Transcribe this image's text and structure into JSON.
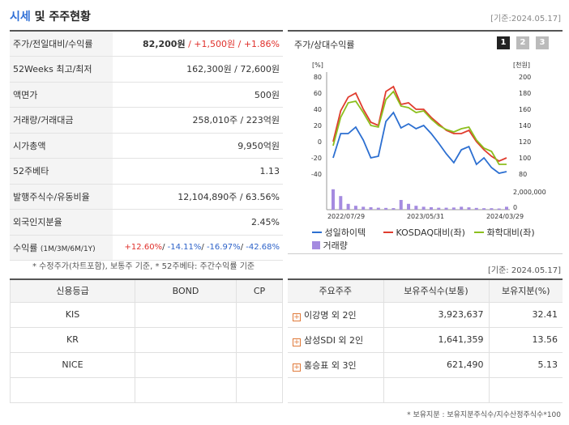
{
  "header": {
    "title_highlight": "시세",
    "title_rest": " 및 주주현황",
    "basedate": "[기준:2024.05.17]"
  },
  "price_table": {
    "rows": [
      {
        "label": "주가/전일대비/수익률",
        "price": "82,200원",
        "sep1": " / ",
        "change": "+1,500원",
        "sep2": " / ",
        "pct": "+1.86%"
      },
      {
        "label": "52Weeks 최고/최저",
        "value": "162,300원 / 72,600원"
      },
      {
        "label": "액면가",
        "value": "500원"
      },
      {
        "label": "거래량/거래대금",
        "value": "258,010주 / 223억원"
      },
      {
        "label": "시가총액",
        "value": "9,950억원"
      },
      {
        "label": "52주베타",
        "value": "1.13"
      },
      {
        "label": "발행주식수/유동비율",
        "value": "12,104,890주 / 63.56%"
      },
      {
        "label": "외국인지분율",
        "value": "2.45%"
      },
      {
        "label": "수익률",
        "label_sub": "(1M/3M/6M/1Y)",
        "r1": "+12.60%",
        "r2": "-14.11%",
        "r3": "-16.97%",
        "r4": "-42.68%"
      }
    ],
    "note": "* 수정주가(차트포함), 보통주 기준, * 52주베타: 주간수익률 기준"
  },
  "chart_panel": {
    "title": "주가/상대수익률",
    "period_buttons": [
      "1",
      "2",
      "3"
    ],
    "basedate": "[기준: 2024.05.17]",
    "left_unit": "[%]",
    "right_unit": "[천원]",
    "volume_label": "2,000,000",
    "volume_zero": "0",
    "legend": [
      "성일하이텍",
      "KOSDAQ대비(좌)",
      "화학대비(좌)",
      "거래량"
    ],
    "colors": {
      "stock": "#2c6fd1",
      "kosdaq": "#e03c2e",
      "chem": "#8cbf1e",
      "volume": "#a58be0"
    }
  },
  "chart_data": {
    "type": "line",
    "x_labels": [
      "2022/07/29",
      "2023/05/31",
      "2024/03/29"
    ],
    "left_axis": {
      "ticks": [
        "80",
        "60",
        "40",
        "20",
        "0",
        "-20",
        "-40"
      ],
      "ylim": [
        -40,
        80
      ]
    },
    "right_axis": {
      "ticks": [
        "200",
        "180",
        "160",
        "140",
        "120",
        "100",
        "80"
      ],
      "ylim": [
        80,
        200
      ]
    },
    "series": [
      {
        "name": "성일하이텍",
        "axis": "right",
        "values": [
          100,
          130,
          130,
          138,
          122,
          100,
          102,
          145,
          156,
          137,
          142,
          136,
          140,
          130,
          118,
          105,
          94,
          110,
          114,
          92,
          100,
          88,
          81,
          83
        ]
      },
      {
        "name": "KOSDAQ대비(좌)",
        "axis": "left",
        "values": [
          0,
          38,
          55,
          60,
          40,
          24,
          20,
          62,
          68,
          46,
          48,
          40,
          40,
          30,
          22,
          14,
          10,
          10,
          14,
          0,
          -10,
          -18,
          -24,
          -20
        ]
      },
      {
        "name": "화학대비(좌)",
        "axis": "left",
        "values": [
          -5,
          30,
          48,
          50,
          36,
          20,
          18,
          52,
          62,
          44,
          42,
          36,
          38,
          28,
          20,
          15,
          12,
          16,
          18,
          2,
          -8,
          -12,
          -28,
          -28
        ]
      }
    ],
    "volume": [
      2100000,
      1400000,
      600000,
      400000,
      300000,
      250000,
      200000,
      180000,
      160000,
      1000000,
      600000,
      400000,
      300000,
      250000,
      200000,
      200000,
      220000,
      300000,
      240000,
      180000,
      150000,
      150000,
      120000,
      300000
    ]
  },
  "credit_table": {
    "headers": [
      "신용등급",
      "BOND",
      "CP"
    ],
    "rows": [
      [
        "KIS",
        "",
        ""
      ],
      [
        "KR",
        "",
        ""
      ],
      [
        "NICE",
        "",
        ""
      ],
      [
        "",
        "",
        ""
      ]
    ]
  },
  "holders_table": {
    "headers": [
      "주요주주",
      "보유주식수(보통)",
      "보유지분(%)"
    ],
    "rows": [
      [
        "이강명 외 2인",
        "3,923,637",
        "32.41"
      ],
      [
        "삼성SDI 외 2인",
        "1,641,359",
        "13.56"
      ],
      [
        "홍승표 외 3인",
        "621,490",
        "5.13"
      ],
      [
        "",
        "",
        ""
      ]
    ],
    "plus_icon": "+",
    "note": "* 보유지분 : 보유지분주식수/지수산정주식수*100"
  }
}
